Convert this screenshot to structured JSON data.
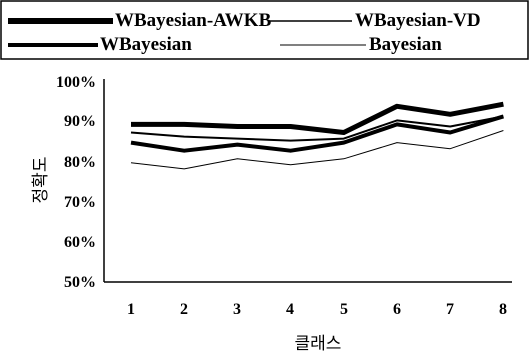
{
  "chart_data": {
    "type": "line",
    "title": "",
    "xlabel": "클래스",
    "ylabel": "정확도",
    "categories": [
      "1",
      "2",
      "3",
      "4",
      "5",
      "6",
      "7",
      "8"
    ],
    "y_ticks": [
      "50%",
      "60%",
      "70%",
      "80%",
      "90%",
      "100%"
    ],
    "ylim": [
      50,
      100
    ],
    "grid": false,
    "legend_position": "top",
    "series": [
      {
        "name": "WBayesian-AWKB",
        "values": [
          89,
          89,
          88.5,
          88.5,
          87,
          93.5,
          91.5,
          94
        ],
        "color": "#000000",
        "style": "bold"
      },
      {
        "name": "WBayesian-VD",
        "values": [
          87,
          86,
          85.5,
          85,
          85.5,
          90,
          88.5,
          91
        ],
        "color": "#000000",
        "style": "medium"
      },
      {
        "name": "WBayesian",
        "values": [
          84.5,
          82.5,
          84,
          82.5,
          84.5,
          89,
          87,
          91
        ],
        "color": "#000000",
        "style": "thick"
      },
      {
        "name": "Bayesian",
        "values": [
          79.5,
          78,
          80.5,
          79,
          80.5,
          84.5,
          83,
          87.5
        ],
        "color": "#000000",
        "style": "thin"
      }
    ]
  }
}
